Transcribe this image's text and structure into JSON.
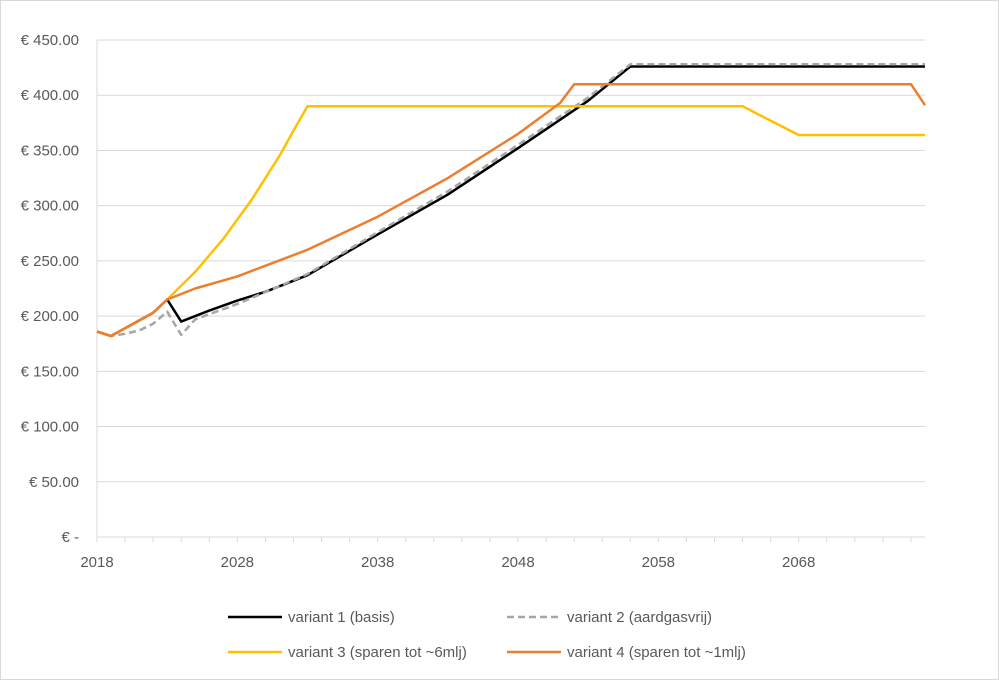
{
  "chart_data": {
    "type": "line",
    "title": "",
    "xlabel": "",
    "ylabel": "",
    "ylim": [
      0,
      450
    ],
    "xlim": [
      2018,
      2077
    ],
    "y_ticks": [
      0,
      50,
      100,
      150,
      200,
      250,
      300,
      350,
      400,
      450
    ],
    "y_tick_labels": [
      "€ -",
      "€ 50.00",
      "€ 100.00",
      "€ 150.00",
      "€ 200.00",
      "€ 250.00",
      "€ 300.00",
      "€ 350.00",
      "€ 400.00",
      "€ 450.00"
    ],
    "x_ticks": [
      2018,
      2028,
      2038,
      2048,
      2058,
      2068
    ],
    "x_tick_labels": [
      "2018",
      "2028",
      "2038",
      "2048",
      "2058",
      "2068"
    ],
    "grid": "horizontal",
    "legend_position": "bottom",
    "series": [
      {
        "name": "variant 1 (basis)",
        "color": "#000000",
        "dash": "solid",
        "points": [
          [
            2018,
            186
          ],
          [
            2019,
            182
          ],
          [
            2021,
            196
          ],
          [
            2022,
            203
          ],
          [
            2023,
            215
          ],
          [
            2024,
            195
          ],
          [
            2026,
            205
          ],
          [
            2028,
            214
          ],
          [
            2030,
            222
          ],
          [
            2033,
            237
          ],
          [
            2038,
            274
          ],
          [
            2043,
            310
          ],
          [
            2048,
            352
          ],
          [
            2053,
            395
          ],
          [
            2056,
            426
          ],
          [
            2077,
            426
          ]
        ]
      },
      {
        "name": "variant 2 (aardgasvrij)",
        "color": "#a6a6a6",
        "dash": "dashed",
        "points": [
          [
            2018,
            186
          ],
          [
            2019,
            182
          ],
          [
            2020,
            184
          ],
          [
            2021,
            187
          ],
          [
            2022,
            193
          ],
          [
            2023,
            204
          ],
          [
            2024,
            183
          ],
          [
            2025,
            197
          ],
          [
            2028,
            211
          ],
          [
            2033,
            238
          ],
          [
            2038,
            276
          ],
          [
            2043,
            313
          ],
          [
            2048,
            355
          ],
          [
            2053,
            398
          ],
          [
            2056,
            428
          ],
          [
            2077,
            428
          ]
        ]
      },
      {
        "name": "variant 3  (sparen tot ~6mlj)",
        "color": "#ffc000",
        "dash": "solid",
        "points": [
          [
            2018,
            186
          ],
          [
            2019,
            182
          ],
          [
            2021,
            196
          ],
          [
            2022,
            203
          ],
          [
            2023,
            215
          ],
          [
            2025,
            240
          ],
          [
            2027,
            270
          ],
          [
            2029,
            305
          ],
          [
            2031,
            345
          ],
          [
            2032,
            368
          ],
          [
            2033,
            390
          ],
          [
            2064,
            390
          ],
          [
            2068,
            364
          ],
          [
            2077,
            364
          ]
        ]
      },
      {
        "name": "variant 4 (sparen tot ~1mlj)",
        "color": "#ed7d31",
        "dash": "solid",
        "points": [
          [
            2018,
            186
          ],
          [
            2019,
            182
          ],
          [
            2021,
            196
          ],
          [
            2022,
            203
          ],
          [
            2023,
            215
          ],
          [
            2025,
            225
          ],
          [
            2028,
            236
          ],
          [
            2033,
            260
          ],
          [
            2038,
            290
          ],
          [
            2043,
            325
          ],
          [
            2048,
            365
          ],
          [
            2051,
            393
          ],
          [
            2052,
            410
          ],
          [
            2076,
            410
          ],
          [
            2077,
            391
          ]
        ]
      }
    ]
  }
}
